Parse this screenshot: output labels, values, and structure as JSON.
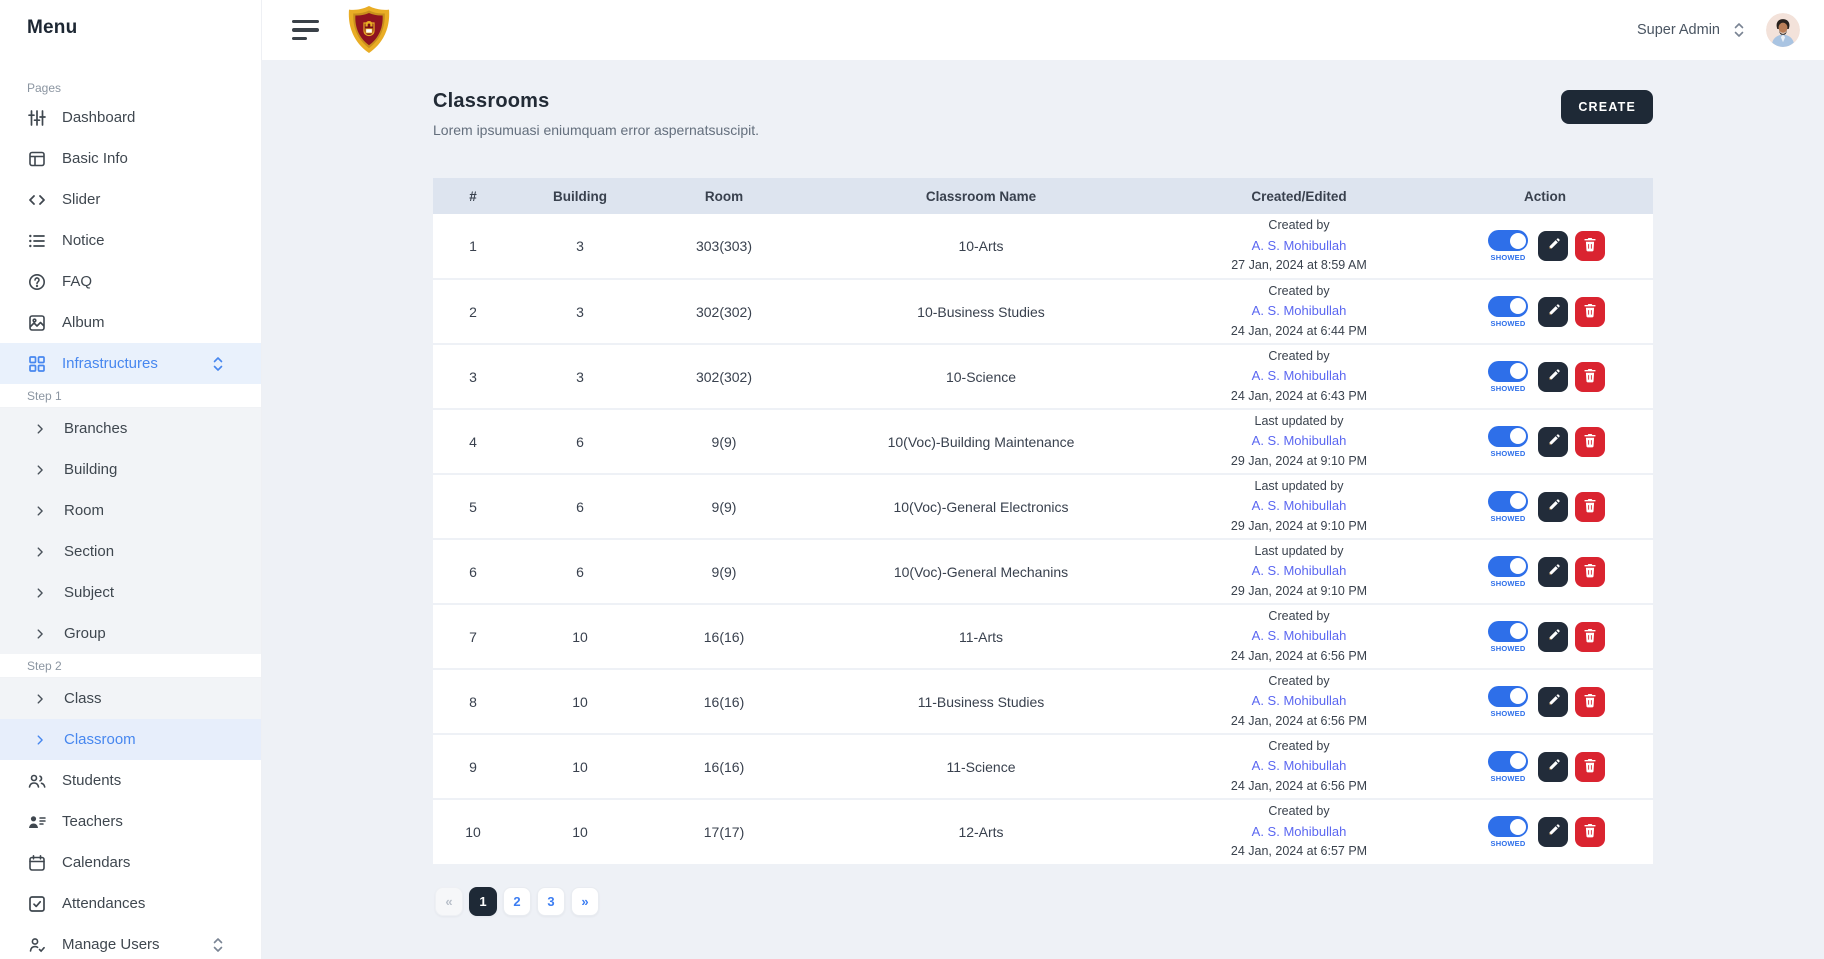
{
  "colors": {
    "accent_blue": "#2e6fe9",
    "active_link_blue": "#4787ef",
    "author_link": "#5b67f1",
    "dark_navy": "#1e2936",
    "danger_red": "#da2430",
    "table_header_bg": "#dde4ef",
    "main_bg": "#eef1f6",
    "sidebar_active_bg": "#e9f1fc"
  },
  "sidebar": {
    "title": "Menu",
    "items": [
      {
        "type": "section",
        "label": "Pages"
      },
      {
        "type": "item",
        "icon": "dashboard-icon",
        "label": "Dashboard"
      },
      {
        "type": "item",
        "icon": "basic-info-icon",
        "label": "Basic Info"
      },
      {
        "type": "item",
        "icon": "slider-icon",
        "label": "Slider"
      },
      {
        "type": "item",
        "icon": "notice-icon",
        "label": "Notice"
      },
      {
        "type": "item",
        "icon": "faq-icon",
        "label": "FAQ"
      },
      {
        "type": "item",
        "icon": "album-icon",
        "label": "Album"
      },
      {
        "type": "item",
        "icon": "infrastructures-icon",
        "label": "Infrastructures",
        "active": true,
        "expander": true
      },
      {
        "type": "step",
        "label": "Step 1"
      },
      {
        "type": "subitem",
        "icon": "chevron-right-icon",
        "label": "Branches"
      },
      {
        "type": "subitem",
        "icon": "chevron-right-icon",
        "label": "Building"
      },
      {
        "type": "subitem",
        "icon": "chevron-right-icon",
        "label": "Room"
      },
      {
        "type": "subitem",
        "icon": "chevron-right-icon",
        "label": "Section"
      },
      {
        "type": "subitem",
        "icon": "chevron-right-icon",
        "label": "Subject"
      },
      {
        "type": "subitem",
        "icon": "chevron-right-icon",
        "label": "Group"
      },
      {
        "type": "step",
        "label": "Step 2"
      },
      {
        "type": "subitem",
        "icon": "chevron-right-icon",
        "label": "Class"
      },
      {
        "type": "subitem",
        "icon": "chevron-right-icon",
        "label": "Classroom",
        "active": true
      },
      {
        "type": "item",
        "icon": "students-icon",
        "label": "Students"
      },
      {
        "type": "item",
        "icon": "teachers-icon",
        "label": "Teachers"
      },
      {
        "type": "item",
        "icon": "calendars-icon",
        "label": "Calendars"
      },
      {
        "type": "item",
        "icon": "attendances-icon",
        "label": "Attendances"
      },
      {
        "type": "item",
        "icon": "manage-users-icon",
        "label": "Manage Users",
        "expander": true
      }
    ]
  },
  "topbar": {
    "user_role": "Super Admin",
    "icons": [
      "hamburger-icon",
      "school-logo",
      "selector-icon",
      "user-avatar"
    ]
  },
  "page": {
    "title": "Classrooms",
    "subtitle": "Lorem ipsumuasi eniumquam error aspernatsuscipit.",
    "create_label": "CREATE"
  },
  "table": {
    "headers": [
      "#",
      "Building",
      "Room",
      "Classroom Name",
      "Created/Edited",
      "Action"
    ],
    "toggle_label": "SHOWED",
    "action_icons": {
      "toggle": "toggle-switch",
      "edit": "pencil-icon",
      "delete": "trash-icon"
    },
    "rows": [
      {
        "num": "1",
        "building": "3",
        "room": "303(303)",
        "name": "10-Arts",
        "action_type": "Created by",
        "author": "A. S. Mohibullah",
        "date": "27 Jan, 2024 at 8:59 AM"
      },
      {
        "num": "2",
        "building": "3",
        "room": "302(302)",
        "name": "10-Business Studies",
        "action_type": "Created by",
        "author": "A. S. Mohibullah",
        "date": "24 Jan, 2024 at 6:44 PM"
      },
      {
        "num": "3",
        "building": "3",
        "room": "302(302)",
        "name": "10-Science",
        "action_type": "Created by",
        "author": "A. S. Mohibullah",
        "date": "24 Jan, 2024 at 6:43 PM"
      },
      {
        "num": "4",
        "building": "6",
        "room": "9(9)",
        "name": "10(Voc)-Building Maintenance",
        "action_type": "Last updated by",
        "author": "A. S. Mohibullah",
        "date": "29 Jan, 2024 at 9:10 PM"
      },
      {
        "num": "5",
        "building": "6",
        "room": "9(9)",
        "name": "10(Voc)-General Electronics",
        "action_type": "Last updated by",
        "author": "A. S. Mohibullah",
        "date": "29 Jan, 2024 at 9:10 PM"
      },
      {
        "num": "6",
        "building": "6",
        "room": "9(9)",
        "name": "10(Voc)-General Mechanins",
        "action_type": "Last updated by",
        "author": "A. S. Mohibullah",
        "date": "29 Jan, 2024 at 9:10 PM"
      },
      {
        "num": "7",
        "building": "10",
        "room": "16(16)",
        "name": "11-Arts",
        "action_type": "Created by",
        "author": "A. S. Mohibullah",
        "date": "24 Jan, 2024 at 6:56 PM"
      },
      {
        "num": "8",
        "building": "10",
        "room": "16(16)",
        "name": "11-Business Studies",
        "action_type": "Created by",
        "author": "A. S. Mohibullah",
        "date": "24 Jan, 2024 at 6:56 PM"
      },
      {
        "num": "9",
        "building": "10",
        "room": "16(16)",
        "name": "11-Science",
        "action_type": "Created by",
        "author": "A. S. Mohibullah",
        "date": "24 Jan, 2024 at 6:56 PM"
      },
      {
        "num": "10",
        "building": "10",
        "room": "17(17)",
        "name": "12-Arts",
        "action_type": "Created by",
        "author": "A. S. Mohibullah",
        "date": "24 Jan, 2024 at 6:57 PM"
      }
    ]
  },
  "pagination": {
    "items": [
      {
        "label": "«",
        "state": "disabled",
        "name": "prev"
      },
      {
        "label": "1",
        "state": "active",
        "name": "page-1"
      },
      {
        "label": "2",
        "state": "normal",
        "name": "page-2"
      },
      {
        "label": "3",
        "state": "normal",
        "name": "page-3"
      },
      {
        "label": "»",
        "state": "normal",
        "name": "next"
      }
    ]
  }
}
